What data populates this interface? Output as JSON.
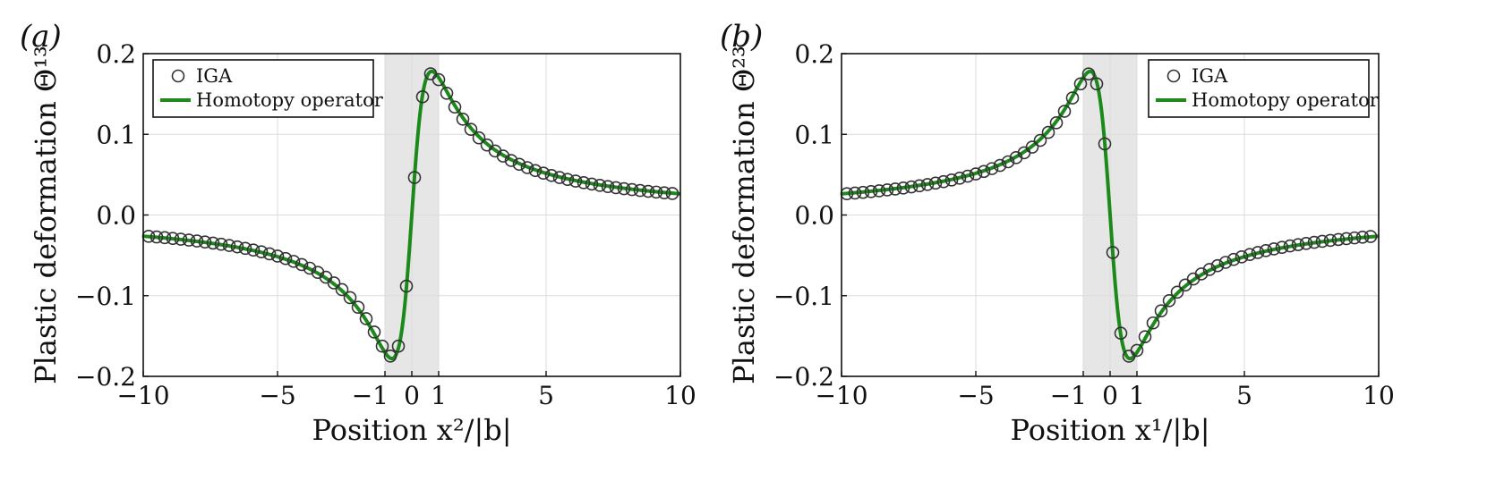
{
  "chart_data": [
    {
      "panel": "(a)",
      "type": "line",
      "xlabel": "Position x²/|b|",
      "ylabel": "Plastic deformation Θ¹³",
      "xlim": [
        -10,
        10
      ],
      "ylim": [
        -0.2,
        0.2
      ],
      "xticks": [
        -10,
        -5,
        -1,
        0,
        1,
        5,
        10
      ],
      "xtick_labels": [
        "−10",
        "−5",
        "−1",
        "0",
        "1",
        "5",
        "10"
      ],
      "yticks": [
        -0.2,
        -0.1,
        0.0,
        0.1,
        0.2
      ],
      "ytick_labels": [
        "−0.2",
        "−0.1",
        "0.0",
        "0.1",
        "0.2"
      ],
      "grid": true,
      "shaded_region": [
        -1,
        1
      ],
      "legend_position": "top-left",
      "sign": 1,
      "peak_value": 0.178,
      "series": [
        {
          "name": "IGA",
          "style": "markers",
          "marker": "open-circle",
          "color": "#333333"
        },
        {
          "name": "Homotopy operator",
          "style": "line",
          "color": "#1b8a1b"
        }
      ]
    },
    {
      "panel": "(b)",
      "type": "line",
      "xlabel": "Position x¹/|b|",
      "ylabel": "Plastic deformation Θ²³",
      "xlim": [
        -10,
        10
      ],
      "ylim": [
        -0.2,
        0.2
      ],
      "xticks": [
        -10,
        -5,
        -1,
        0,
        1,
        5,
        10
      ],
      "xtick_labels": [
        "−10",
        "−5",
        "−1",
        "0",
        "1",
        "5",
        "10"
      ],
      "yticks": [
        -0.2,
        -0.1,
        0.0,
        0.1,
        0.2
      ],
      "ytick_labels": [
        "−0.2",
        "−0.1",
        "0.0",
        "0.1",
        "0.2"
      ],
      "grid": true,
      "shaded_region": [
        -1,
        1
      ],
      "legend_position": "top-right",
      "sign": -1,
      "peak_value": 0.178,
      "series": [
        {
          "name": "IGA",
          "style": "markers",
          "marker": "open-circle",
          "color": "#333333"
        },
        {
          "name": "Homotopy operator",
          "style": "line",
          "color": "#1b8a1b"
        }
      ]
    }
  ]
}
